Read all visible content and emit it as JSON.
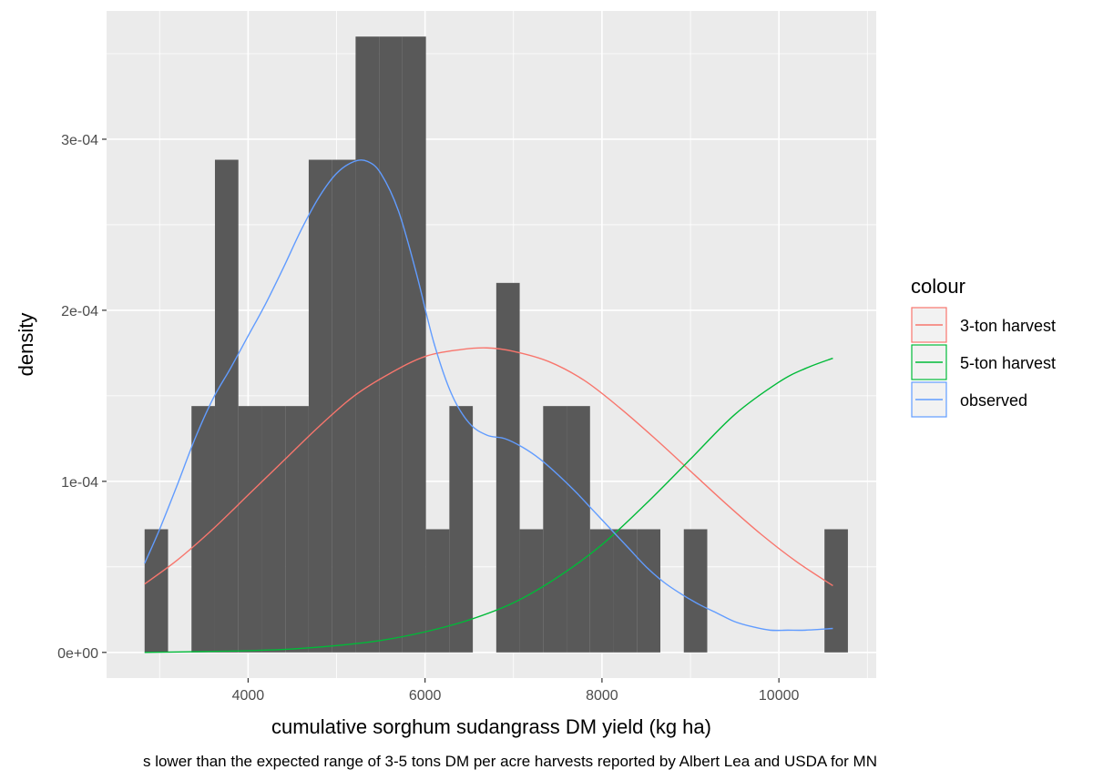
{
  "chart_data": {
    "type": "histogram+density",
    "xlabel": "cumulative sorghum sudangrass DM yield (kg ha)",
    "ylabel": "density",
    "caption": "s lower than the expected range of 3-5 tons DM per acre harvests reported by Albert Lea and USDA for MN",
    "xlim": [
      2400,
      11100
    ],
    "ylim": [
      -1.5e-05,
      0.000375
    ],
    "x_ticks": [
      4000,
      6000,
      8000,
      10000
    ],
    "x_tick_labels": [
      "4000",
      "6000",
      "8000",
      "10000"
    ],
    "y_ticks": [
      0,
      0.0001,
      0.0002,
      0.0003
    ],
    "y_tick_labels": [
      "0e+00",
      "1e-04",
      "2e-04",
      "3e-04"
    ],
    "grid": true,
    "bar_color": "#595959",
    "panel_color": "#ebebeb",
    "histogram": {
      "bins": [
        {
          "x0": 2830,
          "x1": 3095,
          "density": 7.2e-05
        },
        {
          "x0": 3095,
          "x1": 3360,
          "density": 0
        },
        {
          "x0": 3360,
          "x1": 3625,
          "density": 0.000144
        },
        {
          "x0": 3625,
          "x1": 3890,
          "density": 0.000288
        },
        {
          "x0": 3890,
          "x1": 4155,
          "density": 0.000144
        },
        {
          "x0": 4155,
          "x1": 4420,
          "density": 0.000144
        },
        {
          "x0": 4420,
          "x1": 4685,
          "density": 0.000144
        },
        {
          "x0": 4685,
          "x1": 4950,
          "density": 0.000288
        },
        {
          "x0": 4950,
          "x1": 5215,
          "density": 0.000288
        },
        {
          "x0": 5215,
          "x1": 5480,
          "density": 0.00036
        },
        {
          "x0": 5480,
          "x1": 5745,
          "density": 0.00036
        },
        {
          "x0": 5745,
          "x1": 6010,
          "density": 0.00036
        },
        {
          "x0": 6010,
          "x1": 6275,
          "density": 7.2e-05
        },
        {
          "x0": 6275,
          "x1": 6540,
          "density": 0.000144
        },
        {
          "x0": 6540,
          "x1": 6805,
          "density": 0
        },
        {
          "x0": 6805,
          "x1": 7070,
          "density": 0.000216
        },
        {
          "x0": 7070,
          "x1": 7335,
          "density": 7.2e-05
        },
        {
          "x0": 7335,
          "x1": 7600,
          "density": 0.000144
        },
        {
          "x0": 7600,
          "x1": 7865,
          "density": 0.000144
        },
        {
          "x0": 7865,
          "x1": 8130,
          "density": 7.2e-05
        },
        {
          "x0": 8130,
          "x1": 8395,
          "density": 7.2e-05
        },
        {
          "x0": 8395,
          "x1": 8660,
          "density": 7.2e-05
        },
        {
          "x0": 8660,
          "x1": 8925,
          "density": 0
        },
        {
          "x0": 8925,
          "x1": 9190,
          "density": 7.2e-05
        },
        {
          "x0": 9190,
          "x1": 9455,
          "density": 0
        },
        {
          "x0": 9455,
          "x1": 9720,
          "density": 0
        },
        {
          "x0": 9720,
          "x1": 9985,
          "density": 0
        },
        {
          "x0": 9985,
          "x1": 10250,
          "density": 0
        },
        {
          "x0": 10250,
          "x1": 10515,
          "density": 0
        },
        {
          "x0": 10515,
          "x1": 10780,
          "density": 7.2e-05
        }
      ]
    },
    "series": [
      {
        "name": "3-ton harvest",
        "color": "#f8766d",
        "x": [
          2830,
          3200,
          3600,
          4000,
          4400,
          4800,
          5200,
          5600,
          6000,
          6400,
          6700,
          7000,
          7400,
          7800,
          8200,
          8600,
          9000,
          9400,
          9800,
          10200,
          10610
        ],
        "y": [
          4e-05,
          5.4e-05,
          7.2e-05,
          9.2e-05,
          0.000112,
          0.000132,
          0.00015,
          0.000163,
          0.000173,
          0.000177,
          0.000178,
          0.000176,
          0.00017,
          0.000159,
          0.000143,
          0.000125,
          0.000106,
          8.7e-05,
          6.9e-05,
          5.3e-05,
          3.9e-05
        ]
      },
      {
        "name": "5-ton harvest",
        "color": "#00ba38",
        "x": [
          2830,
          3500,
          4000,
          4500,
          5000,
          5500,
          6000,
          6500,
          7000,
          7500,
          8000,
          8500,
          9000,
          9500,
          10000,
          10300,
          10610
        ],
        "y": [
          0,
          5e-07,
          1e-06,
          2e-06,
          4e-06,
          7e-06,
          1.2e-05,
          1.9e-05,
          2.9e-05,
          4.4e-05,
          6.3e-05,
          8.7e-05,
          0.000113,
          0.000139,
          0.000158,
          0.000166,
          0.000172
        ]
      },
      {
        "name": "observed",
        "color": "#619cff",
        "x": [
          2830,
          3000,
          3200,
          3400,
          3600,
          3800,
          4000,
          4200,
          4400,
          4600,
          4800,
          5000,
          5200,
          5350,
          5500,
          5700,
          5900,
          6100,
          6300,
          6500,
          6700,
          6900,
          7100,
          7300,
          7500,
          7700,
          7900,
          8100,
          8300,
          8500,
          8700,
          8900,
          9100,
          9300,
          9500,
          9700,
          9900,
          10100,
          10300,
          10610
        ],
        "y": [
          5.2e-05,
          7.2e-05,
          9.8e-05,
          0.000125,
          0.000148,
          0.000166,
          0.000185,
          0.000204,
          0.000225,
          0.000247,
          0.000266,
          0.00028,
          0.000287,
          0.000287,
          0.00028,
          0.000258,
          0.000222,
          0.000181,
          0.000151,
          0.000134,
          0.000127,
          0.000125,
          0.00012,
          0.000113,
          0.000104,
          9.4e-05,
          8.3e-05,
          7.2e-05,
          6.1e-05,
          5e-05,
          4.1e-05,
          3.4e-05,
          2.8e-05,
          2.3e-05,
          1.8e-05,
          1.5e-05,
          1.3e-05,
          1.3e-05,
          1.3e-05,
          1.4e-05
        ]
      }
    ],
    "legend": {
      "title": "colour",
      "placement": "right",
      "entries": [
        "3-ton harvest",
        "5-ton harvest",
        "observed"
      ]
    }
  }
}
